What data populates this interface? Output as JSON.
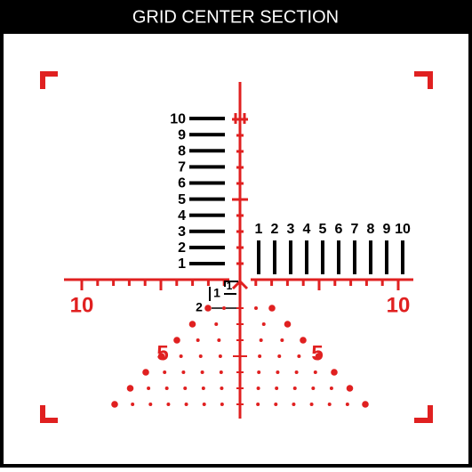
{
  "header": {
    "title": "GRID CENTER SECTION"
  },
  "left_scale": {
    "labels": [
      "1",
      "2",
      "3",
      "4",
      "5",
      "6",
      "7",
      "8",
      "9",
      "10"
    ]
  },
  "top_scale": {
    "labels": [
      "1",
      "2",
      "3",
      "4",
      "5",
      "6",
      "7",
      "8",
      "9",
      "10"
    ]
  },
  "horizontal_scale": {
    "left_label": "10",
    "right_label": "10"
  },
  "holdover": {
    "left_label": "5",
    "right_label": "5"
  },
  "center_labels": [
    "1",
    "1",
    "2"
  ]
}
